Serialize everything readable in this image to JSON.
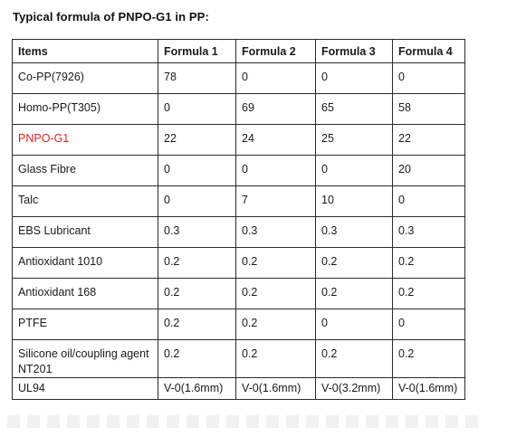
{
  "title": "Typical formula of PNPO-G1 in PP:",
  "colors": {
    "highlight": "#e02020",
    "border": "#2b2b2b",
    "text": "#1a1a1a"
  },
  "table": {
    "headers": [
      "Items",
      "Formula 1",
      "Formula 2",
      "Formula 3",
      "Formula 4"
    ],
    "rows": [
      {
        "item": "Co-PP(7926)",
        "values": [
          "78",
          "0",
          "0",
          "0"
        ]
      },
      {
        "item": "Homo-PP(T305)",
        "values": [
          "0",
          "69",
          "65",
          "58"
        ]
      },
      {
        "item": "PNPO-G1",
        "values": [
          "22",
          "24",
          "25",
          "22"
        ],
        "highlight": true
      },
      {
        "item": "Glass Fibre",
        "values": [
          "0",
          "0",
          "0",
          "20"
        ]
      },
      {
        "item": "Talc",
        "values": [
          "0",
          "7",
          "10",
          "0"
        ]
      },
      {
        "item": "EBS Lubricant",
        "values": [
          "0.3",
          "0.3",
          "0.3",
          "0.3"
        ]
      },
      {
        "item": "Antioxidant 1010",
        "values": [
          "0.2",
          "0.2",
          "0.2",
          "0.2"
        ]
      },
      {
        "item": "Antioxidant 168",
        "values": [
          "0.2",
          "0.2",
          "0.2",
          "0.2"
        ]
      },
      {
        "item": "PTFE",
        "values": [
          "0.2",
          "0.2",
          "0",
          "0"
        ]
      },
      {
        "item": "Silicone oil/coupling agent NT201",
        "values": [
          "0.2",
          "0.2",
          "0.2",
          "0.2"
        ]
      },
      {
        "item": "UL94",
        "values": [
          "V-0(1.6mm)",
          "V-0(1.6mm)",
          "V-0(3.2mm)",
          "V-0(1.6mm)"
        ]
      }
    ]
  }
}
